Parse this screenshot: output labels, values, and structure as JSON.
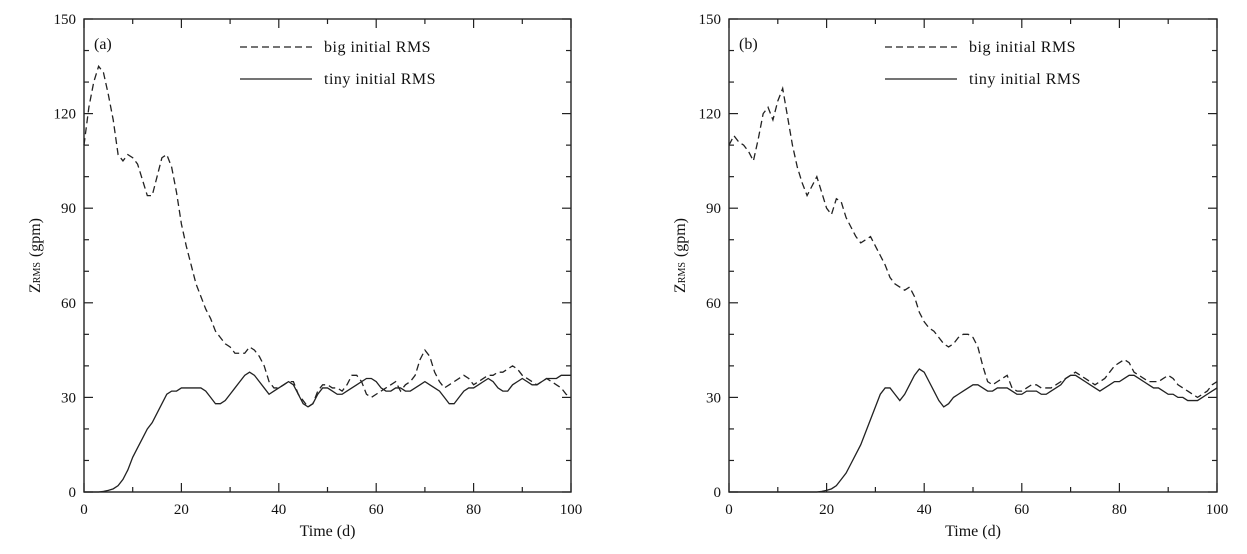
{
  "chart_data": [
    {
      "type": "line",
      "panel_label": "(a)",
      "xlabel": "Time (d)",
      "ylabel_main": "Z",
      "ylabel_sub": "RMS",
      "ylabel_unit": "(gpm)",
      "xlim": [
        0,
        100
      ],
      "ylim": [
        0,
        150
      ],
      "xticks": [
        0,
        20,
        40,
        60,
        80,
        100
      ],
      "yticks": [
        0,
        30,
        60,
        90,
        120,
        150
      ],
      "legend_position": "top-right",
      "series": [
        {
          "name": "big initial RMS",
          "style": "dashed",
          "x": [
            0,
            1,
            2,
            3,
            4,
            5,
            6,
            7,
            8,
            9,
            10,
            11,
            12,
            13,
            14,
            15,
            16,
            17,
            18,
            19,
            20,
            21,
            22,
            23,
            24,
            25,
            26,
            27,
            28,
            29,
            30,
            31,
            32,
            33,
            34,
            35,
            36,
            37,
            38,
            39,
            40,
            41,
            42,
            43,
            44,
            45,
            46,
            47,
            48,
            49,
            50,
            51,
            52,
            53,
            54,
            55,
            56,
            57,
            58,
            59,
            60,
            61,
            62,
            63,
            64,
            65,
            66,
            67,
            68,
            69,
            70,
            71,
            72,
            73,
            74,
            75,
            76,
            77,
            78,
            79,
            80,
            81,
            82,
            83,
            84,
            85,
            86,
            87,
            88,
            89,
            90,
            91,
            92,
            93,
            94,
            95,
            96,
            97,
            98,
            99,
            100
          ],
          "values": [
            110,
            122,
            130,
            135,
            133,
            126,
            118,
            107,
            105,
            107,
            106,
            104,
            99,
            94,
            94,
            100,
            106,
            107,
            103,
            95,
            85,
            78,
            72,
            66,
            62,
            58,
            55,
            51,
            49,
            47,
            46,
            44,
            44,
            44,
            46,
            45,
            43,
            40,
            35,
            33,
            33,
            34,
            35,
            35,
            31,
            29,
            27,
            28,
            32,
            34,
            34,
            33,
            33,
            32,
            34,
            37,
            37,
            35,
            31,
            30,
            31,
            32,
            33,
            34,
            35,
            32,
            34,
            35,
            37,
            42,
            45,
            43,
            38,
            35,
            33,
            34,
            35,
            36,
            37,
            36,
            34,
            35,
            36,
            37,
            37,
            38,
            38,
            39,
            40,
            39,
            37,
            36,
            35,
            34,
            35,
            36,
            35,
            34,
            33,
            31,
            30
          ]
        },
        {
          "name": "tiny initial RMS",
          "style": "solid",
          "x": [
            0,
            1,
            2,
            3,
            4,
            5,
            6,
            7,
            8,
            9,
            10,
            11,
            12,
            13,
            14,
            15,
            16,
            17,
            18,
            19,
            20,
            21,
            22,
            23,
            24,
            25,
            26,
            27,
            28,
            29,
            30,
            31,
            32,
            33,
            34,
            35,
            36,
            37,
            38,
            39,
            40,
            41,
            42,
            43,
            44,
            45,
            46,
            47,
            48,
            49,
            50,
            51,
            52,
            53,
            54,
            55,
            56,
            57,
            58,
            59,
            60,
            61,
            62,
            63,
            64,
            65,
            66,
            67,
            68,
            69,
            70,
            71,
            72,
            73,
            74,
            75,
            76,
            77,
            78,
            79,
            80,
            81,
            82,
            83,
            84,
            85,
            86,
            87,
            88,
            89,
            90,
            91,
            92,
            93,
            94,
            95,
            96,
            97,
            98,
            99,
            100
          ],
          "values": [
            0,
            0,
            0,
            0,
            0.2,
            0.5,
            1,
            2,
            4,
            7,
            11,
            14,
            17,
            20,
            22,
            25,
            28,
            31,
            32,
            32,
            33,
            33,
            33,
            33,
            33,
            32,
            30,
            28,
            28,
            29,
            31,
            33,
            35,
            37,
            38,
            37,
            35,
            33,
            31,
            32,
            33,
            34,
            35,
            34,
            31,
            28,
            27,
            28,
            31,
            33,
            33,
            32,
            31,
            31,
            32,
            33,
            34,
            35,
            36,
            36,
            35,
            33,
            32,
            32,
            33,
            33,
            32,
            32,
            33,
            34,
            35,
            34,
            33,
            32,
            30,
            28,
            28,
            30,
            32,
            33,
            33,
            34,
            35,
            36,
            35,
            33,
            32,
            32,
            34,
            35,
            36,
            35,
            34,
            34,
            35,
            36,
            36,
            36,
            37,
            37,
            37
          ]
        }
      ]
    },
    {
      "type": "line",
      "panel_label": "(b)",
      "xlabel": "Time (d)",
      "ylabel_main": "Z",
      "ylabel_sub": "RMS",
      "ylabel_unit": "(gpm)",
      "xlim": [
        0,
        100
      ],
      "ylim": [
        0,
        150
      ],
      "xticks": [
        0,
        20,
        40,
        60,
        80,
        100
      ],
      "yticks": [
        0,
        30,
        60,
        90,
        120,
        150
      ],
      "legend_position": "top-right",
      "series": [
        {
          "name": "big initial RMS",
          "style": "dashed",
          "x": [
            0,
            1,
            2,
            3,
            4,
            5,
            6,
            7,
            8,
            9,
            10,
            11,
            12,
            13,
            14,
            15,
            16,
            17,
            18,
            19,
            20,
            21,
            22,
            23,
            24,
            25,
            26,
            27,
            28,
            29,
            30,
            31,
            32,
            33,
            34,
            35,
            36,
            37,
            38,
            39,
            40,
            41,
            42,
            43,
            44,
            45,
            46,
            47,
            48,
            49,
            50,
            51,
            52,
            53,
            54,
            55,
            56,
            57,
            58,
            59,
            60,
            61,
            62,
            63,
            64,
            65,
            66,
            67,
            68,
            69,
            70,
            71,
            72,
            73,
            74,
            75,
            76,
            77,
            78,
            79,
            80,
            81,
            82,
            83,
            84,
            85,
            86,
            87,
            88,
            89,
            90,
            91,
            92,
            93,
            94,
            95,
            96,
            97,
            98,
            99,
            100
          ],
          "values": [
            110,
            113,
            111,
            110,
            108,
            105,
            112,
            120,
            122,
            118,
            124,
            128,
            119,
            110,
            103,
            98,
            94,
            97,
            100,
            95,
            90,
            88,
            93,
            92,
            87,
            84,
            81,
            79,
            80,
            81,
            78,
            75,
            72,
            68,
            66,
            65,
            64,
            65,
            62,
            57,
            54,
            52,
            51,
            49,
            47,
            46,
            47,
            49,
            50,
            50,
            49,
            46,
            40,
            35,
            34,
            35,
            36,
            37,
            33,
            32,
            32,
            33,
            34,
            34,
            33,
            33,
            33,
            34,
            35,
            36,
            37,
            38,
            37,
            36,
            35,
            34,
            35,
            36,
            38,
            40,
            41,
            42,
            41,
            38,
            37,
            36,
            35,
            35,
            35,
            36,
            37,
            36,
            34,
            33,
            32,
            31,
            30,
            31,
            32,
            34,
            35
          ]
        },
        {
          "name": "tiny initial RMS",
          "style": "solid",
          "x": [
            0,
            1,
            2,
            3,
            4,
            5,
            6,
            7,
            8,
            9,
            10,
            11,
            12,
            13,
            14,
            15,
            16,
            17,
            18,
            19,
            20,
            21,
            22,
            23,
            24,
            25,
            26,
            27,
            28,
            29,
            30,
            31,
            32,
            33,
            34,
            35,
            36,
            37,
            38,
            39,
            40,
            41,
            42,
            43,
            44,
            45,
            46,
            47,
            48,
            49,
            50,
            51,
            52,
            53,
            54,
            55,
            56,
            57,
            58,
            59,
            60,
            61,
            62,
            63,
            64,
            65,
            66,
            67,
            68,
            69,
            70,
            71,
            72,
            73,
            74,
            75,
            76,
            77,
            78,
            79,
            80,
            81,
            82,
            83,
            84,
            85,
            86,
            87,
            88,
            89,
            90,
            91,
            92,
            93,
            94,
            95,
            96,
            97,
            98,
            99,
            100
          ],
          "values": [
            0,
            0,
            0,
            0,
            0,
            0,
            0,
            0,
            0,
            0,
            0,
            0,
            0,
            0,
            0,
            0,
            0,
            0,
            0,
            0.2,
            0.5,
            1,
            2,
            4,
            6,
            9,
            12,
            15,
            19,
            23,
            27,
            31,
            33,
            33,
            31,
            29,
            31,
            34,
            37,
            39,
            38,
            35,
            32,
            29,
            27,
            28,
            30,
            31,
            32,
            33,
            34,
            34,
            33,
            32,
            32,
            33,
            33,
            33,
            32,
            31,
            31,
            32,
            32,
            32,
            31,
            31,
            32,
            33,
            34,
            36,
            37,
            37,
            36,
            35,
            34,
            33,
            32,
            33,
            34,
            35,
            35,
            36,
            37,
            37,
            36,
            35,
            34,
            33,
            33,
            32,
            31,
            31,
            30,
            30,
            29,
            29,
            29,
            30,
            31,
            32,
            33
          ]
        }
      ]
    }
  ]
}
